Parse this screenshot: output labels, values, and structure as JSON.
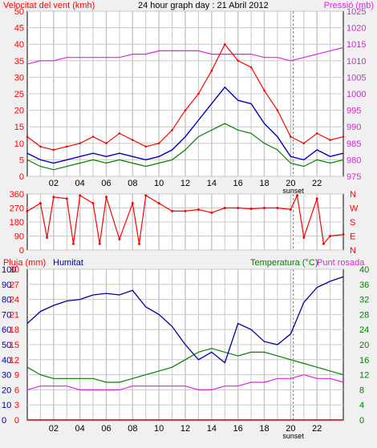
{
  "header": {
    "title": "24 hour graph day : 21 Abril 2012",
    "left_label": "Velocitat del vent (kmh)",
    "right_label": "Pressió (mb)"
  },
  "colors": {
    "wind_gust": "#ff0000",
    "wind_avg": "#0000c0",
    "wind_dark": "#008000",
    "pressure": "#e020e0",
    "direction": "#ff0000",
    "humidity": "#0000a0",
    "temperature": "#008000",
    "dewpoint": "#e020e0",
    "rain": "#c00000",
    "grid": "#c8c8c8",
    "plot_bg": "#ffffff"
  },
  "x_ticks": [
    "02",
    "04",
    "06",
    "08",
    "10",
    "12",
    "14",
    "16",
    "18",
    "20",
    "22"
  ],
  "sunset_label": "sunset",
  "chart_data": [
    {
      "type": "line",
      "name": "wind",
      "ylim_left": [
        0,
        50
      ],
      "ylim_right": [
        975,
        1025
      ],
      "left_ticks": [
        "50",
        "45",
        "40",
        "35",
        "30",
        "25",
        "20",
        "15",
        "10",
        "5",
        "0"
      ],
      "right_ticks": [
        "1025",
        "1020",
        "1015",
        "1010",
        "1005",
        "1000",
        "995",
        "990",
        "985",
        "980",
        "975"
      ],
      "x_hours": [
        0,
        1,
        2,
        3,
        4,
        5,
        6,
        7,
        8,
        9,
        10,
        11,
        12,
        13,
        14,
        15,
        16,
        17,
        18,
        19,
        20,
        21,
        22,
        23,
        24
      ],
      "gust": [
        12,
        9,
        8,
        9,
        10,
        12,
        10,
        13,
        11,
        9,
        10,
        14,
        20,
        25,
        32,
        40,
        35,
        33,
        26,
        20,
        12,
        10,
        13,
        11,
        12
      ],
      "average": [
        7,
        5,
        4,
        5,
        6,
        7,
        6,
        7,
        6,
        5,
        6,
        8,
        12,
        17,
        22,
        27,
        23,
        22,
        16,
        12,
        6,
        5,
        8,
        6,
        7
      ],
      "dark": [
        5,
        3,
        2,
        3,
        4,
        5,
        4,
        5,
        4,
        3,
        4,
        5,
        8,
        12,
        14,
        16,
        14,
        13,
        10,
        8,
        4,
        3,
        5,
        4,
        5
      ],
      "pressure": [
        1009,
        1010,
        1010,
        1011,
        1011,
        1011,
        1011,
        1011,
        1012,
        1012,
        1013,
        1013,
        1013,
        1013,
        1012,
        1012,
        1012,
        1012,
        1011,
        1011,
        1010,
        1011,
        1012,
        1013,
        1014
      ]
    },
    {
      "type": "scatter",
      "name": "wind direction",
      "ylim": [
        0,
        360
      ],
      "left_ticks": [
        "360",
        "270",
        "180",
        "90",
        "0"
      ],
      "right_letters": [
        "N",
        "W",
        "S",
        "E",
        "N"
      ],
      "x_hours": [
        0,
        1,
        1.5,
        2,
        3,
        3.5,
        4,
        5,
        5.5,
        6,
        7,
        8,
        8.5,
        9,
        10,
        11,
        12,
        13,
        14,
        15,
        16,
        17,
        18,
        19,
        20,
        20.5,
        21,
        22,
        22.5,
        23,
        24
      ],
      "values": [
        250,
        300,
        80,
        340,
        330,
        40,
        350,
        300,
        40,
        340,
        70,
        300,
        40,
        350,
        300,
        250,
        250,
        260,
        240,
        270,
        270,
        265,
        270,
        270,
        260,
        350,
        80,
        330,
        40,
        90,
        100
      ]
    },
    {
      "type": "line",
      "name": "humidity temperature",
      "left_labels": {
        "rain": "Pluja (mm)",
        "humidity": "Humitat",
        "temperature": "Temperatura (°C)",
        "dewpoint": "Punt rosada"
      },
      "ylim_rain": [
        0,
        30
      ],
      "ylim_humidity": [
        0,
        100
      ],
      "ylim_temp": [
        0,
        40
      ],
      "rain_ticks": [
        "30",
        "27",
        "24",
        "21",
        "18",
        "15",
        "12",
        "9",
        "6",
        "3",
        "0"
      ],
      "humidity_ticks": [
        "100",
        "90",
        "80",
        "70",
        "60",
        "50",
        "40",
        "30",
        "20",
        "10",
        "0"
      ],
      "temp_ticks": [
        "40",
        "36",
        "32",
        "28",
        "24",
        "20",
        "16",
        "12",
        "8",
        "4",
        "0"
      ],
      "x_hours": [
        0,
        1,
        2,
        3,
        4,
        5,
        6,
        7,
        8,
        9,
        10,
        11,
        12,
        13,
        14,
        15,
        16,
        17,
        18,
        19,
        20,
        21,
        22,
        23,
        24
      ],
      "humidity": [
        64,
        72,
        76,
        79,
        80,
        83,
        84,
        83,
        86,
        75,
        70,
        62,
        50,
        40,
        45,
        38,
        64,
        60,
        52,
        50,
        57,
        78,
        88,
        92,
        95
      ],
      "temperature": [
        14,
        12,
        11,
        11,
        11,
        11,
        10,
        10,
        11,
        12,
        13,
        14,
        16,
        18,
        19,
        18,
        17,
        18,
        18,
        17,
        16,
        15,
        14,
        13,
        12
      ],
      "dewpoint": [
        8,
        9,
        9,
        9,
        8,
        8,
        8,
        8,
        9,
        9,
        9,
        9,
        9,
        8,
        8,
        9,
        9,
        10,
        10,
        11,
        11,
        12,
        11,
        11,
        10
      ],
      "rain": [
        0,
        0,
        0,
        0,
        0,
        0,
        0,
        0,
        0,
        0,
        0,
        0,
        0,
        0,
        0,
        0,
        0,
        0,
        0,
        0,
        0,
        0,
        0,
        0,
        0
      ]
    }
  ]
}
